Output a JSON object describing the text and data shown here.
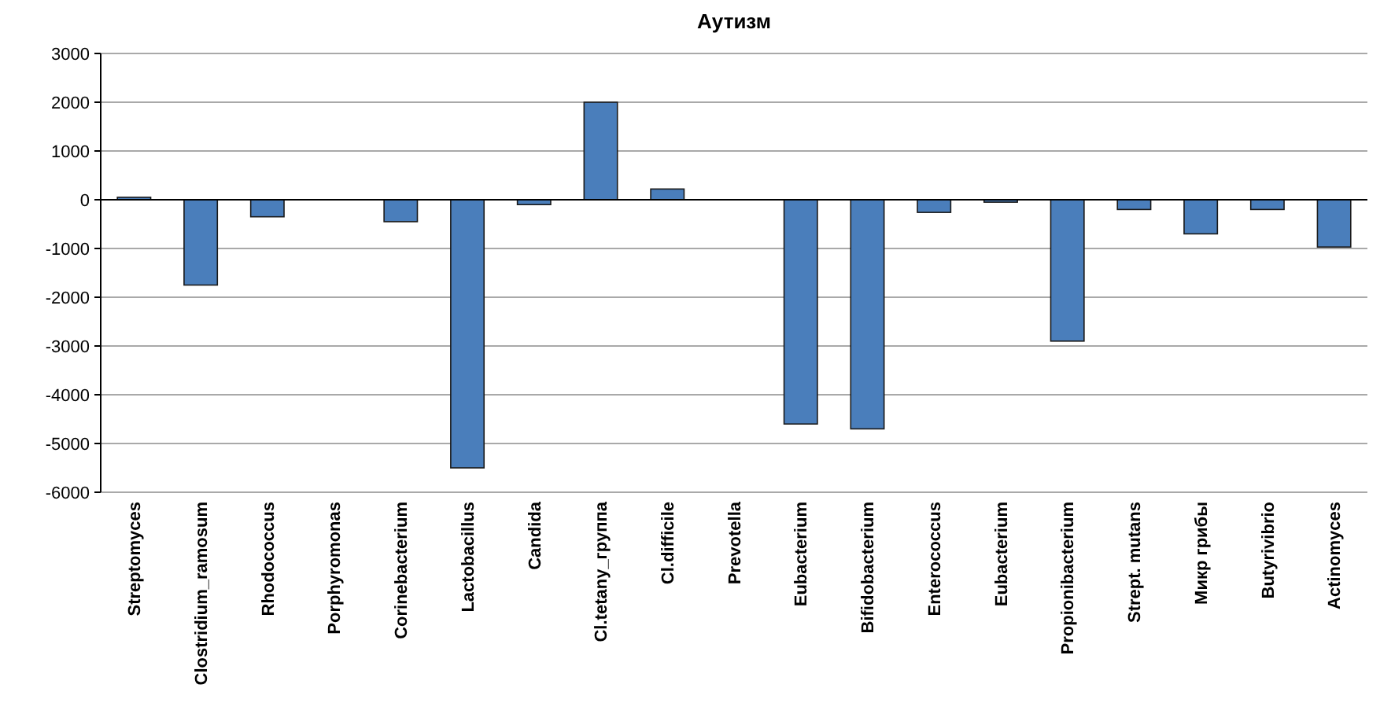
{
  "chart_data": {
    "type": "bar",
    "title": "Аутизм",
    "categories": [
      "Streptomyces",
      "Clostridium_ramosum",
      "Rhodococcus",
      "Porphyromonas",
      "Corinebacterium",
      "Lactobacillus",
      "Candida",
      "Cl.tetany_группа",
      "Cl.difficile",
      "Prevotella",
      "Eubacterium",
      "Bifidobacterium",
      "Enterococcus",
      "Eubacterium",
      "Propionibacterium",
      "Strept. mutans",
      "Микр грибы",
      "Butyrivibrio",
      "Actinomyces"
    ],
    "values": [
      50,
      -1750,
      -350,
      0,
      -450,
      -5500,
      -100,
      2000,
      220,
      0,
      -4600,
      -4700,
      -260,
      -50,
      -2900,
      -200,
      -700,
      -200,
      -970
    ],
    "color": "#4a7ebb",
    "ylim": [
      -6000,
      3000
    ],
    "yticks": [
      -6000,
      -5000,
      -4000,
      -3000,
      -2000,
      -1000,
      0,
      1000,
      2000,
      3000
    ],
    "grid": "y"
  }
}
